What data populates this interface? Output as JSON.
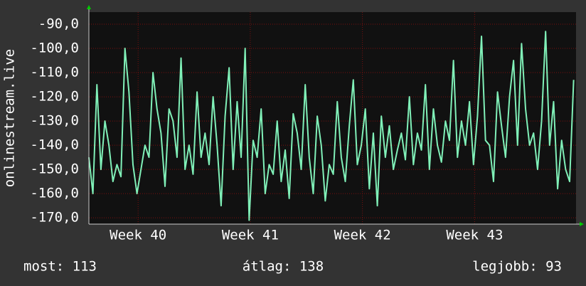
{
  "chart_data": {
    "type": "line",
    "y_label": "onlinestream.live",
    "x": [
      0,
      0.25,
      0.5,
      0.75,
      1,
      1.25,
      1.5,
      1.75,
      2,
      2.25,
      2.5,
      2.75,
      3,
      3.25,
      3.5,
      3.75,
      4,
      4.25,
      4.5,
      4.75,
      5,
      5.25,
      5.5,
      5.75,
      6,
      6.25,
      6.5,
      6.75,
      7,
      7.25,
      7.5,
      7.75,
      8,
      8.25,
      8.5,
      8.75,
      9,
      9.25,
      9.5,
      9.75,
      10,
      10.25,
      10.5,
      10.75,
      11,
      11.25,
      11.5,
      11.75,
      12,
      12.25,
      12.5,
      12.75,
      13,
      13.25,
      13.5,
      13.75,
      14,
      14.25,
      14.5,
      14.75,
      15,
      15.25,
      15.5,
      15.75,
      16,
      16.25,
      16.5,
      16.75,
      17,
      17.25,
      17.5,
      17.75,
      18,
      18.25,
      18.5,
      18.75,
      19,
      19.25,
      19.5,
      19.75,
      20,
      20.25,
      20.5,
      20.75,
      21,
      21.25,
      21.5,
      21.75,
      22,
      22.25,
      22.5,
      22.75,
      23,
      23.25,
      23.5,
      23.75,
      24,
      24.25,
      24.5,
      24.75,
      25,
      25.25,
      25.5,
      25.75,
      26,
      26.25,
      26.5,
      26.75,
      27,
      27.25,
      27.5,
      27.75,
      28,
      28.25,
      28.5,
      28.75,
      29,
      29.25,
      29.5,
      29.75,
      30,
      30.25
    ],
    "series": [
      {
        "color": "#80f0b8",
        "values": [
          -145,
          -160,
          -115,
          -150,
          -130,
          -140,
          -155,
          -148,
          -153,
          -100,
          -118,
          -148,
          -160,
          -150,
          -140,
          -145,
          -110,
          -125,
          -135,
          -157,
          -125,
          -130,
          -145,
          -104,
          -150,
          -140,
          -152,
          -118,
          -145,
          -135,
          -148,
          -120,
          -140,
          -165,
          -128,
          -108,
          -150,
          -122,
          -145,
          -100,
          -171,
          -138,
          -145,
          -125,
          -160,
          -148,
          -152,
          -130,
          -155,
          -142,
          -162,
          -127,
          -135,
          -150,
          -115,
          -145,
          -160,
          -128,
          -140,
          -163,
          -148,
          -152,
          -122,
          -145,
          -155,
          -132,
          -113,
          -148,
          -140,
          -125,
          -158,
          -135,
          -165,
          -128,
          -145,
          -132,
          -150,
          -142,
          -135,
          -146,
          -120,
          -148,
          -135,
          -142,
          -115,
          -150,
          -125,
          -140,
          -147,
          -130,
          -138,
          -105,
          -145,
          -130,
          -140,
          -122,
          -148,
          -128,
          -95,
          -138,
          -140,
          -155,
          -118,
          -132,
          -145,
          -120,
          -105,
          -140,
          -98,
          -125,
          -140,
          -135,
          -150,
          -130,
          -93,
          -140,
          -122,
          -158,
          -138,
          -150,
          -155,
          -113
        ]
      }
    ],
    "xlim": [
      0,
      30.4
    ],
    "xticks": [
      {
        "value": 3.07,
        "label": "Week 40"
      },
      {
        "value": 10.07,
        "label": "Week 41"
      },
      {
        "value": 17.07,
        "label": "Week 42"
      },
      {
        "value": 24.07,
        "label": "Week 43"
      }
    ],
    "ylim": [
      -172.6,
      -85
    ],
    "yticks": [
      {
        "value": -170,
        "label": "-170,0"
      },
      {
        "value": -160,
        "label": "-160,0"
      },
      {
        "value": -150,
        "label": "-150,0"
      },
      {
        "value": -140,
        "label": "-140,0"
      },
      {
        "value": -130,
        "label": "-130,0"
      },
      {
        "value": -120,
        "label": "-120,0"
      },
      {
        "value": -110,
        "label": "-110,0"
      },
      {
        "value": -100,
        "label": "-100,0"
      },
      {
        "value": -90,
        "label": "-90,0"
      }
    ],
    "grid": true,
    "stats": [
      "most: 113",
      "átlag: 138",
      "legjobb: 93"
    ]
  }
}
